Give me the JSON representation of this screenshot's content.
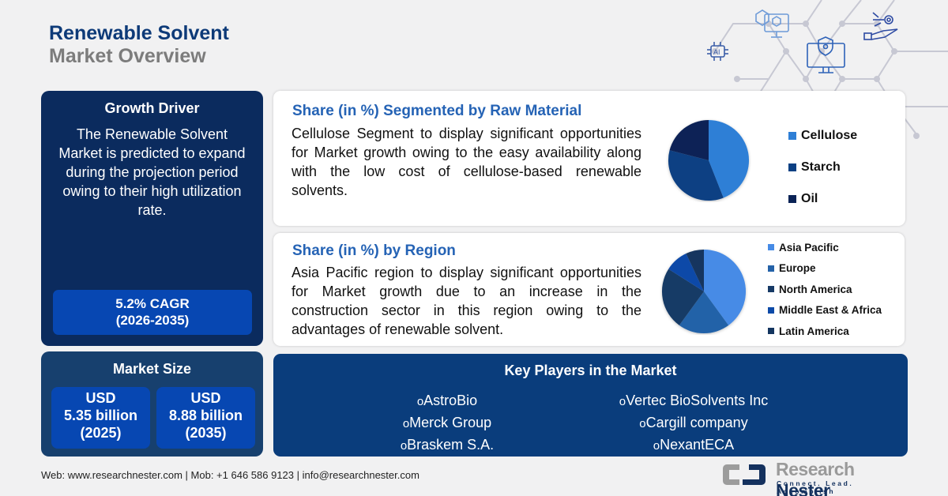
{
  "header": {
    "title_line1": "Renewable Solvent",
    "title_line2": "Market Overview"
  },
  "decor_icons": [
    "ai-chip-icon",
    "3d-cube-monitor-icon",
    "security-monitor-icon",
    "robot-hand-gear-icon"
  ],
  "growth_driver": {
    "heading": "Growth Driver",
    "text": "The Renewable Solvent Market is predicted to expand during the projection period owing to their high utilization rate.",
    "cagr": "5.2% CAGR",
    "period": "(2026-2035)"
  },
  "market_size": {
    "heading": "Market Size",
    "values": [
      {
        "currency": "USD",
        "amount": "5.35 billion",
        "year": "(2025)"
      },
      {
        "currency": "USD",
        "amount": "8.88 billion",
        "year": "(2035)"
      }
    ]
  },
  "raw_material": {
    "heading": "Share (in %) Segmented by Raw Material",
    "text": "Cellulose Segment to display significant opportunities for Market growth owing to the easy availability along with the low cost of cellulose-based renewable solvents.",
    "legend": [
      "Cellulose",
      "Starch",
      "Oil"
    ]
  },
  "region": {
    "heading": "Share (in %) by Region",
    "text": "Asia Pacific region to display significant opportunities for Market growth due to an increase in the construction sector in this region owing to the advantages of renewable solvent.",
    "legend": [
      "Asia Pacific",
      "Europe",
      "North America",
      "Middle East & Africa",
      "Latin America"
    ]
  },
  "key_players": {
    "heading": "Key Players in the Market",
    "left": [
      "AstroBio",
      "Merck Group",
      "Braskem S.A."
    ],
    "right": [
      "Vertec BioSolvents Inc",
      "Cargill company",
      "NexantECA"
    ]
  },
  "footer": {
    "contact": "Web: www.researchnester.com | Mob: +1 646 586 9123 | info@researchnester.com"
  },
  "logo": {
    "name_part1": "Research",
    "name_part2": "Nester",
    "tagline": "Connect. Lead. Accomplish"
  },
  "colors": {
    "title_blue": "#0d3a78",
    "growth_bg": "#0b2b5e",
    "market_bg": "#17406e",
    "highlight_blue": "#0747b2",
    "players_bg": "#0a3d7c",
    "heading_blue": "#2563b5"
  },
  "chart_data": [
    {
      "type": "pie",
      "title": "Share (in %) Segmented by Raw Material",
      "categories": [
        "Cellulose",
        "Starch",
        "Oil"
      ],
      "values": [
        44,
        35,
        21
      ],
      "colors": [
        "#2e7fd6",
        "#0b4083",
        "#0a2356"
      ],
      "legend_position": "right"
    },
    {
      "type": "pie",
      "title": "Share (in %) by Region",
      "categories": [
        "Asia Pacific",
        "Europe",
        "North America",
        "Middle East & Africa",
        "Latin America"
      ],
      "values": [
        40,
        20,
        24,
        9,
        7
      ],
      "colors": [
        "#468be6",
        "#2462a8",
        "#163a66",
        "#0c4aa8",
        "#13355f"
      ],
      "legend_position": "right"
    }
  ]
}
